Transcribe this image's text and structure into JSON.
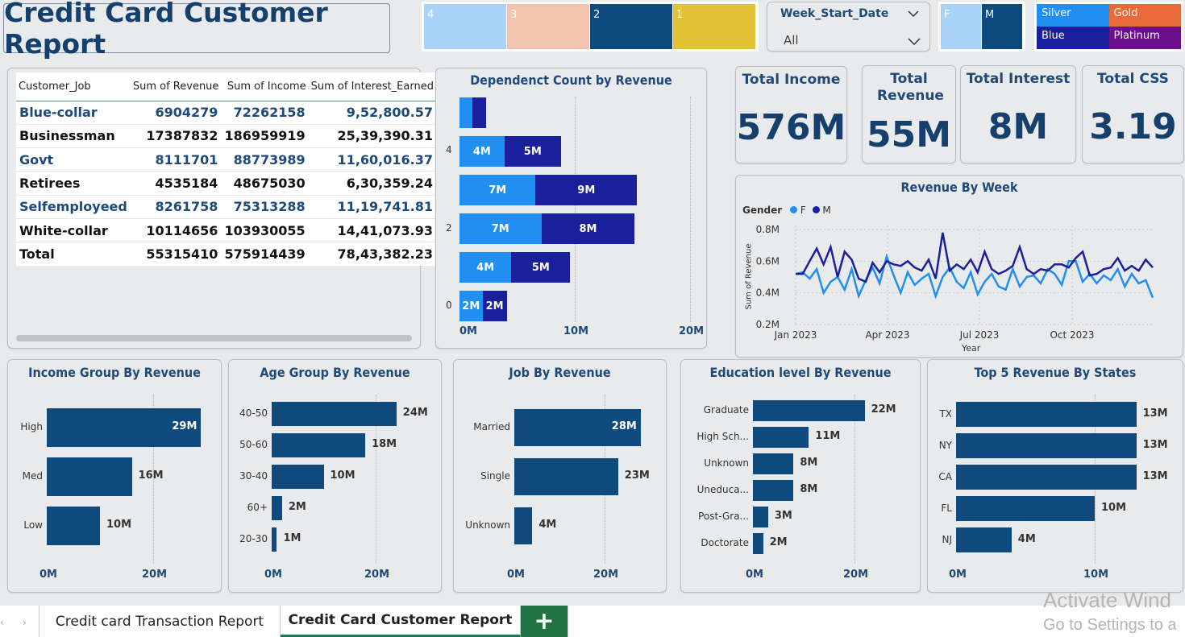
{
  "page_title": "Credit Card Customer Report",
  "slicers": {
    "numbers": [
      {
        "label": "4",
        "color": "#a8d2f7"
      },
      {
        "label": "3",
        "color": "#f2c4ad"
      },
      {
        "label": "2",
        "color": "#0e4a7d"
      },
      {
        "label": "1",
        "color": "#e2c335"
      }
    ],
    "week": {
      "label": "Week_Start_Date",
      "value": "All"
    },
    "gender": [
      {
        "label": "F",
        "color": "#a8d2f7"
      },
      {
        "label": "M",
        "color": "#0e4a7d"
      }
    ],
    "card_category": [
      {
        "label": "Silver",
        "color": "#1f8ff2"
      },
      {
        "label": "Gold",
        "color": "#e8693a"
      },
      {
        "label": "Blue",
        "color": "#1a1f9e"
      },
      {
        "label": "Platinum",
        "color": "#6b0f8a"
      }
    ]
  },
  "table": {
    "headers": [
      "Customer_Job",
      "Sum of Revenue",
      "Sum of Income",
      "Sum of Interest_Earned"
    ],
    "rows": [
      [
        "Blue-collar",
        "6904279",
        "72262158",
        "9,52,800.57"
      ],
      [
        "Businessman",
        "17387832",
        "186959919",
        "25,39,390.31"
      ],
      [
        "Govt",
        "8111701",
        "88773989",
        "11,60,016.37"
      ],
      [
        "Retirees",
        "4535184",
        "48675030",
        "6,30,359.24"
      ],
      [
        "Selfemployeed",
        "8261758",
        "75313288",
        "11,19,741.81"
      ],
      [
        "White-collar",
        "10114656",
        "103930055",
        "14,41,073.93"
      ]
    ],
    "total": [
      "Total",
      "55315410",
      "575914439",
      "78,43,382.23"
    ]
  },
  "kpis": [
    {
      "title": "Total Income",
      "value": "576M"
    },
    {
      "title": "Total Revenue",
      "value": "55M"
    },
    {
      "title": "Total Interest",
      "value": "8M"
    },
    {
      "title": "Total CSS",
      "value": "3.19"
    }
  ],
  "dependent_chart": {
    "title": "Dependenct Count by Revenue",
    "y_ticks": [
      "4",
      "2",
      "0"
    ],
    "x_ticks": [
      "0M",
      "10M",
      "20M"
    ],
    "rows": [
      {
        "dep": "5",
        "f": 1.1,
        "m": 1.2,
        "f_lbl": "",
        "m_lbl": ""
      },
      {
        "dep": "4",
        "f": 3.9,
        "m": 4.9,
        "f_lbl": "4M",
        "m_lbl": "5M"
      },
      {
        "dep": "3",
        "f": 6.6,
        "m": 8.8,
        "f_lbl": "7M",
        "m_lbl": "9M"
      },
      {
        "dep": "2",
        "f": 7.1,
        "m": 8.1,
        "f_lbl": "7M",
        "m_lbl": "8M"
      },
      {
        "dep": "1",
        "f": 4.5,
        "m": 5.1,
        "f_lbl": "4M",
        "m_lbl": "5M"
      },
      {
        "dep": "0",
        "f": 2.0,
        "m": 2.1,
        "f_lbl": "2M",
        "m_lbl": "2M"
      }
    ],
    "f_color": "#1f8ff2",
    "m_color": "#1a1f9e"
  },
  "line_chart": {
    "title": "Revenue By Week",
    "legend_title": "Gender",
    "legend": [
      "F",
      "M"
    ],
    "ylabel": "Sum of Revenue",
    "xlabel": "Year",
    "y_ticks": [
      "0.8M",
      "0.6M",
      "0.4M",
      "0.2M"
    ],
    "x_ticks": [
      "Jan 2023",
      "Apr 2023",
      "Jul 2023",
      "Oct 2023"
    ]
  },
  "chart_data": [
    {
      "type": "line",
      "title": "Revenue By Week",
      "xlabel": "Year",
      "ylabel": "Sum of Revenue",
      "ylim": [
        0.2,
        0.8
      ],
      "series": [
        {
          "name": "F",
          "color": "#1f8ff2",
          "values": [
            0.52,
            0.53,
            0.49,
            0.55,
            0.4,
            0.47,
            0.5,
            0.42,
            0.55,
            0.38,
            0.48,
            0.56,
            0.46,
            0.63,
            0.51,
            0.4,
            0.53,
            0.45,
            0.49,
            0.52,
            0.38,
            0.5,
            0.56,
            0.47,
            0.43,
            0.53,
            0.39,
            0.47,
            0.52,
            0.44,
            0.42,
            0.55,
            0.44,
            0.5,
            0.51,
            0.46,
            0.55,
            0.52,
            0.45,
            0.6,
            0.6,
            0.47,
            0.52,
            0.46,
            0.51,
            0.48,
            0.55,
            0.44,
            0.52,
            0.46,
            0.48,
            0.37
          ]
        },
        {
          "name": "M",
          "color": "#1a1f9e",
          "values": [
            0.52,
            0.52,
            0.6,
            0.68,
            0.58,
            0.69,
            0.5,
            0.66,
            0.61,
            0.49,
            0.47,
            0.59,
            0.53,
            0.6,
            0.58,
            0.57,
            0.6,
            0.56,
            0.54,
            0.61,
            0.49,
            0.78,
            0.54,
            0.58,
            0.55,
            0.61,
            0.53,
            0.66,
            0.55,
            0.52,
            0.54,
            0.57,
            0.69,
            0.55,
            0.52,
            0.55,
            0.54,
            0.58,
            0.58,
            0.56,
            0.62,
            0.66,
            0.51,
            0.52,
            0.55,
            0.56,
            0.62,
            0.54,
            0.57,
            0.54,
            0.61,
            0.56
          ]
        }
      ]
    },
    {
      "type": "bar",
      "title": "Income Group By Revenue",
      "categories": [
        "High",
        "Med",
        "Low"
      ],
      "values": [
        29,
        16,
        10
      ],
      "labels": [
        "29M",
        "16M",
        "10M"
      ],
      "xlim": [
        0,
        30
      ],
      "ticks": [
        "0M",
        "20M"
      ]
    },
    {
      "type": "bar",
      "title": "Age Group By Revenue",
      "categories": [
        "40-50",
        "50-60",
        "30-40",
        "60+",
        "20-30"
      ],
      "values": [
        24,
        18,
        10,
        2,
        1
      ],
      "labels": [
        "24M",
        "18M",
        "10M",
        "2M",
        "1M"
      ],
      "xlim": [
        0,
        30
      ],
      "ticks": [
        "0M",
        "20M"
      ]
    },
    {
      "type": "bar",
      "title": "Job By Revenue",
      "categories": [
        "Married",
        "Single",
        "Unknown"
      ],
      "values": [
        28,
        23,
        4
      ],
      "labels": [
        "28M",
        "23M",
        "4M"
      ],
      "xlim": [
        0,
        30
      ],
      "ticks": [
        "0M",
        "20M"
      ]
    },
    {
      "type": "bar",
      "title": "Education level By Revenue",
      "categories": [
        "Graduate",
        "High Sch...",
        "Unknown",
        "Uneduca...",
        "Post-Gra...",
        "Doctorate"
      ],
      "values": [
        22,
        11,
        8,
        8,
        3,
        2
      ],
      "labels": [
        "22M",
        "11M",
        "8M",
        "8M",
        "3M",
        "2M"
      ],
      "xlim": [
        0,
        30
      ],
      "ticks": [
        "0M",
        "20M"
      ]
    },
    {
      "type": "bar",
      "title": "Top 5 Revenue By States",
      "categories": [
        "TX",
        "NY",
        "CA",
        "FL",
        "NJ"
      ],
      "values": [
        13,
        13,
        13,
        10,
        4
      ],
      "labels": [
        "13M",
        "13M",
        "13M",
        "10M",
        "4M"
      ],
      "xlim": [
        0,
        15
      ],
      "ticks": [
        "0M",
        "10M"
      ]
    }
  ],
  "tabs": {
    "tab1": "Credit card Transaction Report",
    "tab2": "Credit Card Customer Report",
    "add": "+"
  },
  "watermark": {
    "line1": "Activate Wind",
    "line2": "Go to Settings to a"
  }
}
